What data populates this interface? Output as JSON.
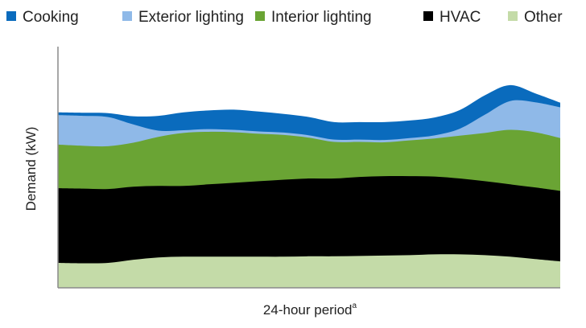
{
  "chart_data": {
    "type": "area",
    "stacked": true,
    "title": "",
    "xlabel": "24-hour period",
    "xlabel_superscript": "a",
    "ylabel": "Demand (kW)",
    "x_tick_labels": false,
    "y_tick_labels": false,
    "grid": false,
    "legend_position": "top",
    "x": [
      0,
      1,
      2,
      3,
      4,
      5,
      6,
      7,
      8,
      9,
      10,
      11,
      12,
      13,
      14,
      15,
      16,
      17,
      18,
      19,
      20
    ],
    "series": [
      {
        "name": "Other",
        "color": "#c4dba8",
        "values": [
          6.4,
          6.3,
          6.4,
          7.2,
          7.8,
          8.0,
          8.0,
          8.0,
          8.0,
          8.0,
          8.1,
          8.1,
          8.2,
          8.3,
          8.4,
          8.6,
          8.6,
          8.4,
          8.0,
          7.4,
          6.8
        ]
      },
      {
        "name": "HVAC",
        "color": "#000000",
        "values": [
          19.2,
          19.2,
          19.0,
          18.8,
          18.4,
          18.2,
          18.6,
          19.0,
          19.4,
          19.8,
          20.0,
          20.0,
          20.3,
          20.4,
          20.3,
          20.0,
          19.5,
          19.0,
          18.6,
          18.4,
          18.1
        ]
      },
      {
        "name": "Interior lighting",
        "color": "#6aa434",
        "values": [
          11.2,
          11.0,
          11.0,
          11.3,
          12.6,
          13.6,
          13.5,
          13.0,
          12.2,
          11.5,
          10.5,
          9.4,
          9.0,
          8.7,
          9.2,
          9.8,
          11.0,
          12.4,
          14.0,
          14.2,
          13.6
        ]
      },
      {
        "name": "Exterior lighting",
        "color": "#8fb9e8",
        "values": [
          7.6,
          7.7,
          7.5,
          4.7,
          1.6,
          0.7,
          0.7,
          0.6,
          0.6,
          0.6,
          0.6,
          0.6,
          0.6,
          0.6,
          0.6,
          0.8,
          1.8,
          4.7,
          7.4,
          7.7,
          7.9
        ]
      },
      {
        "name": "Cooking",
        "color": "#0a6bbd",
        "values": [
          0.7,
          0.8,
          1.0,
          2.1,
          3.8,
          4.6,
          4.8,
          5.2,
          5.1,
          4.8,
          4.7,
          4.5,
          4.5,
          4.6,
          4.5,
          4.6,
          4.8,
          5.0,
          4.1,
          2.3,
          1.2
        ]
      }
    ],
    "legend_order": [
      "Cooking",
      "Exterior lighting",
      "Interior lighting",
      "HVAC",
      "Other"
    ],
    "ylim": [
      0,
      62
    ],
    "xlim": [
      0,
      20
    ]
  }
}
